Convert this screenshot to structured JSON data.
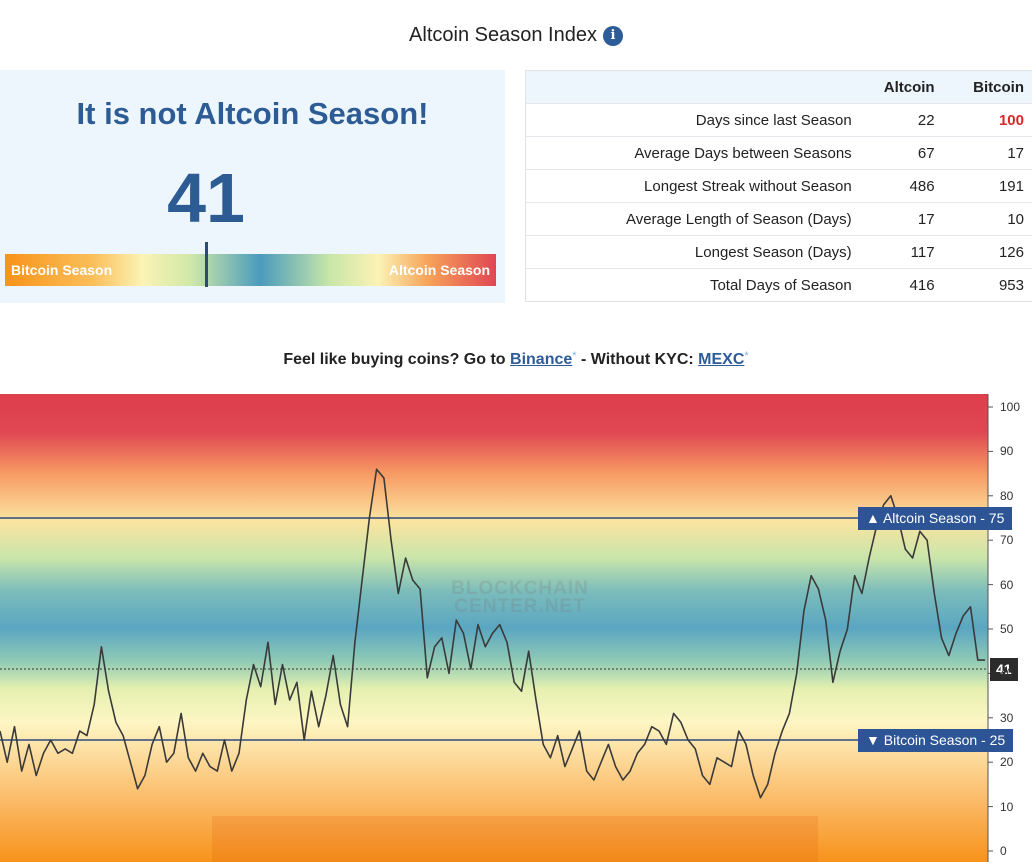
{
  "header": {
    "title": "Altcoin Season Index",
    "info_icon": "info-icon"
  },
  "status": {
    "headline": "It is not Altcoin Season!",
    "index_value": "41",
    "index_fraction": 0.41,
    "gauge_left_label": "Bitcoin Season",
    "gauge_right_label": "Altcoin Season",
    "colors": {
      "accent": "#2d5c95",
      "bitcoin": "#f7931a",
      "altcoin": "#e04653"
    }
  },
  "stats_table": {
    "headers": [
      "",
      "Altcoin",
      "Bitcoin"
    ],
    "rows": [
      [
        "Days since last Season",
        "22",
        "100"
      ],
      [
        "Average Days between Seasons",
        "67",
        "17"
      ],
      [
        "Longest Streak without Season",
        "486",
        "191"
      ],
      [
        "Average Length of Season (Days)",
        "17",
        "10"
      ],
      [
        "Longest Season (Days)",
        "117",
        "126"
      ],
      [
        "Total Days of Season",
        "416",
        "953"
      ]
    ],
    "highlight_color": "#d9272e"
  },
  "promo": {
    "lead": "Feel like buying coins? Go to ",
    "link1": "Binance",
    "mid": " - Without KYC: ",
    "link2": "MEXC",
    "star": "*"
  },
  "chart_data": {
    "type": "line",
    "yticks": [
      "0",
      "10",
      "20",
      "30",
      "40",
      "50",
      "60",
      "70",
      "80",
      "90",
      "100"
    ],
    "ylim": [
      0,
      100
    ],
    "grid": false,
    "watermark": [
      "BLOCKCHAIN",
      "CENTER.NET"
    ],
    "thresholds": [
      {
        "label": "▲ Altcoin Season - 75",
        "value": 75
      },
      {
        "label": "▼ Bitcoin Season - 25",
        "value": 25
      }
    ],
    "current": {
      "label": "41",
      "value": 41
    },
    "series": [
      {
        "values": [
          27,
          20,
          28,
          18,
          24,
          17,
          22,
          25,
          22,
          23,
          22,
          27,
          26,
          33,
          46,
          36,
          29,
          26,
          20,
          14,
          17,
          24,
          28,
          20,
          22,
          31,
          21,
          18,
          22,
          19,
          18,
          25,
          18,
          22,
          34,
          42,
          37,
          47,
          33,
          42,
          34,
          38,
          25,
          36,
          28,
          35,
          44,
          33,
          28,
          47,
          61,
          75,
          86,
          84,
          70,
          58,
          66,
          61,
          59,
          39,
          46,
          48,
          40,
          52,
          49,
          41,
          51,
          46,
          49,
          51,
          47,
          38,
          36,
          45,
          34,
          24,
          21,
          26,
          19,
          23,
          27,
          18,
          16,
          20,
          24,
          19,
          16,
          18,
          22,
          24,
          28,
          27,
          24,
          31,
          29,
          25,
          23,
          17,
          15,
          21,
          20,
          19,
          27,
          24,
          17,
          12,
          15,
          22,
          27,
          31,
          40,
          54,
          62,
          59,
          52,
          38,
          45,
          50,
          62,
          58,
          66,
          73,
          78,
          80,
          75,
          68,
          66,
          72,
          70,
          58,
          48,
          44,
          49,
          53,
          55,
          43,
          43
        ]
      }
    ]
  }
}
